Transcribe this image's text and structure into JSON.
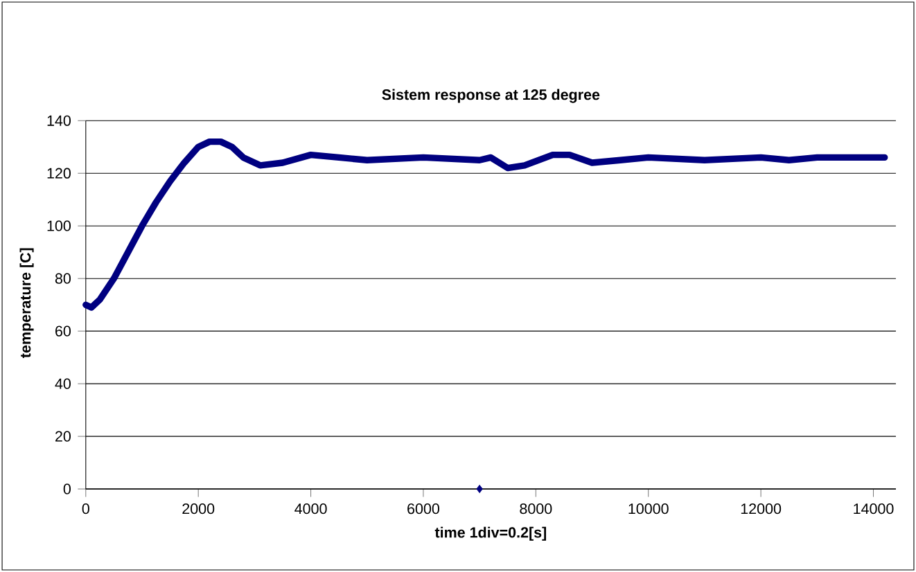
{
  "chart_data": {
    "type": "line",
    "title": "Sistem response at 125 degree",
    "xlabel": "time 1div=0.2[s]",
    "ylabel": "temperature [C]",
    "xlim": [
      0,
      14400
    ],
    "xticks": [
      0,
      2000,
      4000,
      6000,
      8000,
      10000,
      12000,
      14000
    ],
    "ylim": [
      0,
      140
    ],
    "yticks": [
      0,
      20,
      40,
      60,
      80,
      100,
      120,
      140
    ],
    "grid": "y",
    "series": [
      {
        "color": "#000080",
        "x": [
          0,
          100,
          250,
          500,
          750,
          1000,
          1250,
          1500,
          1750,
          2000,
          2200,
          2400,
          2600,
          2800,
          3100,
          3500,
          4000,
          4500,
          5000,
          6000,
          7000,
          7200,
          7500,
          7800,
          8300,
          8600,
          9000,
          9500,
          10000,
          11000,
          12000,
          12500,
          13000,
          14200
        ],
        "values": [
          70,
          69,
          72,
          80,
          90,
          100,
          109,
          117,
          124,
          130,
          132,
          132,
          130,
          126,
          123,
          124,
          127,
          126,
          125,
          126,
          125,
          126,
          122,
          123,
          127,
          127,
          124,
          125,
          126,
          125,
          126,
          125,
          126,
          126
        ]
      },
      {
        "type": "scatter",
        "marker": "diamond",
        "color": "#000080",
        "x": [
          7000
        ],
        "values": [
          0
        ]
      }
    ]
  }
}
